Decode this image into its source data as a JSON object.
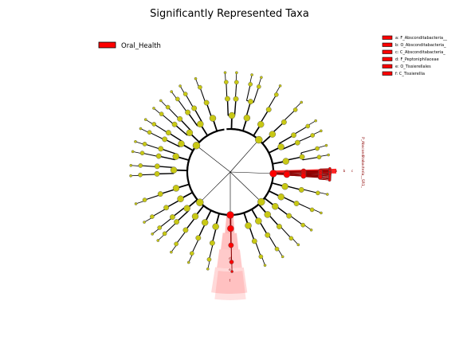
{
  "title": "Significantly Represented Taxa",
  "main_legend": {
    "label": "Oral_Health",
    "color": "#ff0000"
  },
  "clade_legend": [
    {
      "label": "a: F_Absconditabacteria__",
      "color": "#ff0000"
    },
    {
      "label": "b: O_Absconditabacteria_",
      "color": "#ff0000"
    },
    {
      "label": "c: C_Absconditabacteria_",
      "color": "#ff0000"
    },
    {
      "label": "d: F_Peptoniphilaceae",
      "color": "#ff0000"
    },
    {
      "label": "e: O_Tissierellales",
      "color": "#ff0000"
    },
    {
      "label": "f: C_Tissierellia",
      "color": "#ff0000"
    }
  ],
  "phylum_label": "P_Absconditabacteria__SR1_",
  "clade_letters_right": [
    "a",
    "b",
    "c"
  ],
  "clade_letters_bottom": [
    "d",
    "e",
    "f"
  ],
  "colors": {
    "node_default": "#c8c814",
    "node_highlight": "#ff0000",
    "highlight_band": "#ff6666"
  }
}
